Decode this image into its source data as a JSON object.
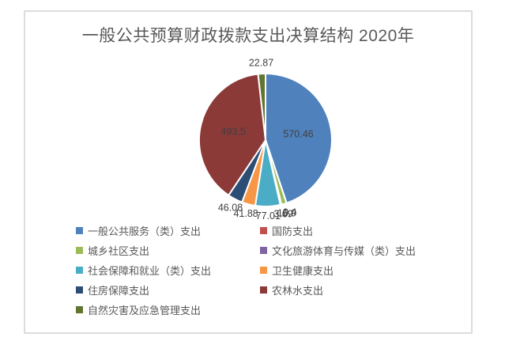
{
  "chart_data": {
    "type": "pie",
    "title": "一般公共预算财政拨款支出决算结构 2020年",
    "legend_position": "bottom",
    "grid": false,
    "title_color": "#595959",
    "label_color": "#404040",
    "legend_text_color": "#595959",
    "frame_border_color": "#dcdcdc",
    "slice_border_color": "#ffffff",
    "series": [
      {
        "label": "一般公共服务（类）支出",
        "value": 570.46,
        "color": "#4F81BD"
      },
      {
        "label": "国防支出",
        "value": 0.4,
        "color": "#C0504D"
      },
      {
        "label": "城乡社区支出",
        "value": 15.9,
        "color": "#9BBB59"
      },
      {
        "label": "文化旅游体育与传媒（类）支出",
        "value": 3.69,
        "color": "#8064A2"
      },
      {
        "label": "社会保障和就业（类）支出",
        "value": 77.01,
        "color": "#4BACC6"
      },
      {
        "label": "卫生健康支出",
        "value": 41.88,
        "color": "#F79646"
      },
      {
        "label": "住房保障支出",
        "value": 46.08,
        "color": "#2C4D75"
      },
      {
        "label": "农林水支出",
        "value": 493.5,
        "color": "#8B3A38"
      },
      {
        "label": "自然灾害及应急管理支出",
        "value": 22.87,
        "color": "#5F7530"
      }
    ]
  }
}
